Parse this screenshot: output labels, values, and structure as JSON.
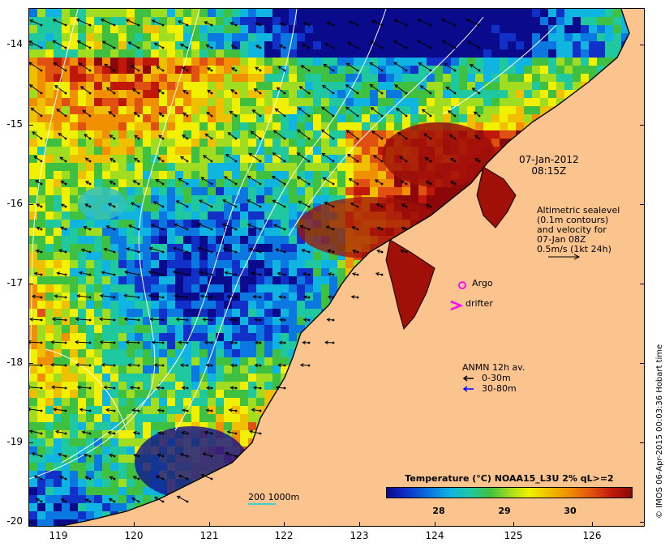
{
  "map": {
    "x_ticks": [
      "119",
      "120",
      "121",
      "122",
      "123",
      "124",
      "125",
      "126"
    ],
    "y_ticks": [
      "-14",
      "-15",
      "-16",
      "-17",
      "-18",
      "-19",
      "-20"
    ],
    "land_color": "#fbc48f",
    "coast_color": "#000000",
    "contour_color": "#ffffff",
    "vector_color": "#000000"
  },
  "annotations": {
    "date": "07-Jan-2012",
    "time": "08:15Z",
    "altimetry_lines": [
      "Altimetric sealevel",
      "(0.1m contours)",
      "and velocity for",
      "07-Jan 08Z",
      "0.5m/s (1kt 24h)"
    ],
    "argo_label": "Argo",
    "drifter_label": "drifter",
    "anmn_title": "ANMN 12h av.",
    "anmn_row1": "0-30m",
    "anmn_row2": "30-80m",
    "anmn_row1_color": "#000000",
    "anmn_row2_color": "#0000ff",
    "marker_color": "#ff00ff"
  },
  "colorbar": {
    "title": "Temperature (°C) NOAA15_L3U 2% qL>=2",
    "ticks": [
      "28",
      "29",
      "30"
    ]
  },
  "scale": {
    "label": "200  1000m",
    "color": "#40d0d0"
  },
  "credit": "© IMOS 06-Apr-2015 00:03:36 Hobart time"
}
